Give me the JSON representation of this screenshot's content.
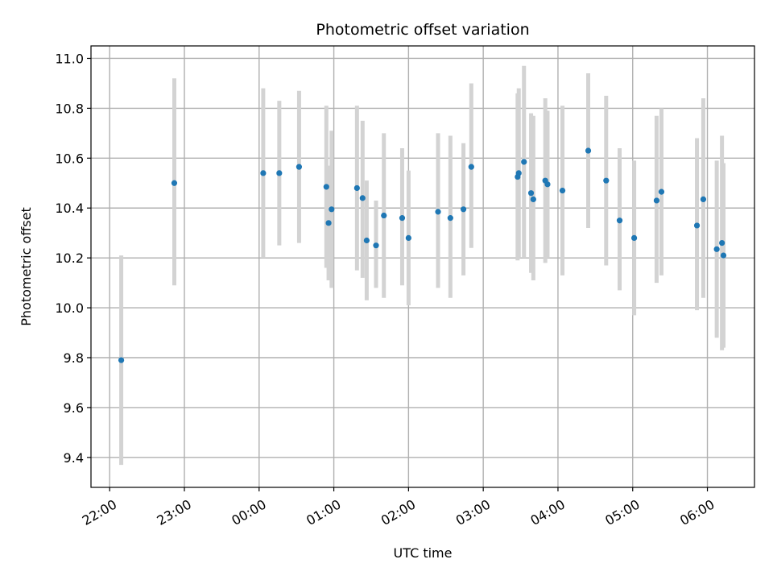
{
  "chart_data": {
    "type": "scatter",
    "title": "Photometric offset variation",
    "xlabel": "UTC time",
    "ylabel": "Photometric offset",
    "grid": true,
    "xlim_hours": [
      -2.25,
      6.63
    ],
    "ylim": [
      9.28,
      11.05
    ],
    "x_ticks": [
      {
        "value": -2,
        "label": "22:00"
      },
      {
        "value": -1,
        "label": "23:00"
      },
      {
        "value": 0,
        "label": "00:00"
      },
      {
        "value": 1,
        "label": "01:00"
      },
      {
        "value": 2,
        "label": "02:00"
      },
      {
        "value": 3,
        "label": "03:00"
      },
      {
        "value": 4,
        "label": "04:00"
      },
      {
        "value": 5,
        "label": "05:00"
      },
      {
        "value": 6,
        "label": "06:00"
      }
    ],
    "y_ticks": [
      {
        "value": 9.4,
        "label": "9.4"
      },
      {
        "value": 9.6,
        "label": "9.6"
      },
      {
        "value": 9.8,
        "label": "9.8"
      },
      {
        "value": 10.0,
        "label": "10.0"
      },
      {
        "value": 10.2,
        "label": "10.2"
      },
      {
        "value": 10.4,
        "label": "10.4"
      },
      {
        "value": 10.6,
        "label": "10.6"
      },
      {
        "value": 10.8,
        "label": "10.8"
      },
      {
        "value": 11.0,
        "label": "11.0"
      }
    ],
    "marker_color": "#1f77b4",
    "errorbar_color": "#d3d3d3",
    "points": [
      {
        "t": -1.845,
        "y": 9.79,
        "lo": 9.37,
        "hi": 10.21
      },
      {
        "t": -1.135,
        "y": 10.5,
        "lo": 10.09,
        "hi": 10.92
      },
      {
        "t": 0.055,
        "y": 10.54,
        "lo": 10.2,
        "hi": 10.88
      },
      {
        "t": 0.27,
        "y": 10.54,
        "lo": 10.25,
        "hi": 10.83
      },
      {
        "t": 0.535,
        "y": 10.565,
        "lo": 10.26,
        "hi": 10.87
      },
      {
        "t": 0.9,
        "y": 10.485,
        "lo": 10.16,
        "hi": 10.81
      },
      {
        "t": 0.93,
        "y": 10.34,
        "lo": 10.11,
        "hi": 10.57
      },
      {
        "t": 0.97,
        "y": 10.395,
        "lo": 10.08,
        "hi": 10.71
      },
      {
        "t": 1.31,
        "y": 10.48,
        "lo": 10.15,
        "hi": 10.81
      },
      {
        "t": 1.385,
        "y": 10.44,
        "lo": 10.12,
        "hi": 10.75
      },
      {
        "t": 1.44,
        "y": 10.27,
        "lo": 10.03,
        "hi": 10.51
      },
      {
        "t": 1.565,
        "y": 10.25,
        "lo": 10.08,
        "hi": 10.43
      },
      {
        "t": 1.67,
        "y": 10.37,
        "lo": 10.04,
        "hi": 10.7
      },
      {
        "t": 1.915,
        "y": 10.36,
        "lo": 10.09,
        "hi": 10.64
      },
      {
        "t": 2.0,
        "y": 10.28,
        "lo": 10.01,
        "hi": 10.55
      },
      {
        "t": 2.395,
        "y": 10.385,
        "lo": 10.08,
        "hi": 10.7
      },
      {
        "t": 2.56,
        "y": 10.36,
        "lo": 10.04,
        "hi": 10.69
      },
      {
        "t": 2.735,
        "y": 10.395,
        "lo": 10.13,
        "hi": 10.66
      },
      {
        "t": 2.84,
        "y": 10.565,
        "lo": 10.24,
        "hi": 10.9
      },
      {
        "t": 3.46,
        "y": 10.525,
        "lo": 10.19,
        "hi": 10.86
      },
      {
        "t": 3.475,
        "y": 10.54,
        "lo": 10.2,
        "hi": 10.88
      },
      {
        "t": 3.545,
        "y": 10.585,
        "lo": 10.2,
        "hi": 10.97
      },
      {
        "t": 3.64,
        "y": 10.46,
        "lo": 10.14,
        "hi": 10.78
      },
      {
        "t": 3.67,
        "y": 10.435,
        "lo": 10.11,
        "hi": 10.77
      },
      {
        "t": 3.83,
        "y": 10.51,
        "lo": 10.18,
        "hi": 10.84
      },
      {
        "t": 3.86,
        "y": 10.495,
        "lo": 10.2,
        "hi": 10.79
      },
      {
        "t": 4.06,
        "y": 10.47,
        "lo": 10.13,
        "hi": 10.81
      },
      {
        "t": 4.405,
        "y": 10.63,
        "lo": 10.32,
        "hi": 10.94
      },
      {
        "t": 4.645,
        "y": 10.51,
        "lo": 10.17,
        "hi": 10.85
      },
      {
        "t": 4.825,
        "y": 10.35,
        "lo": 10.07,
        "hi": 10.64
      },
      {
        "t": 5.02,
        "y": 10.28,
        "lo": 9.97,
        "hi": 10.59
      },
      {
        "t": 5.32,
        "y": 10.43,
        "lo": 10.1,
        "hi": 10.77
      },
      {
        "t": 5.385,
        "y": 10.465,
        "lo": 10.13,
        "hi": 10.8
      },
      {
        "t": 5.86,
        "y": 10.33,
        "lo": 9.99,
        "hi": 10.68
      },
      {
        "t": 5.945,
        "y": 10.435,
        "lo": 10.04,
        "hi": 10.84
      },
      {
        "t": 6.125,
        "y": 10.235,
        "lo": 9.88,
        "hi": 10.59
      },
      {
        "t": 6.195,
        "y": 10.26,
        "lo": 9.83,
        "hi": 10.69
      },
      {
        "t": 6.215,
        "y": 10.21,
        "lo": 9.84,
        "hi": 10.58
      }
    ]
  }
}
